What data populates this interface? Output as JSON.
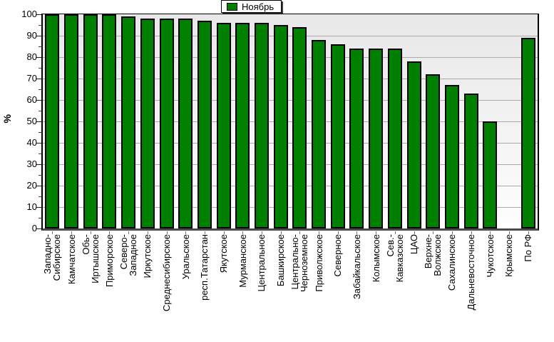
{
  "legend": {
    "label": "Ноябрь",
    "swatch_color": "#008000",
    "position": "top-center"
  },
  "y_axis": {
    "title": "%",
    "tick_labels": [
      "0",
      "10",
      "20",
      "30",
      "40",
      "50",
      "60",
      "70",
      "80",
      "90",
      "100"
    ]
  },
  "colors": {
    "bar_fill": "#008000",
    "bar_border": "#000000",
    "gridline": "#ababab",
    "plot_bg_top": "#e8e8e8",
    "plot_bg_bottom": "#fefefe"
  },
  "chart_data": {
    "type": "bar",
    "title": "",
    "xlabel": "",
    "ylabel": "%",
    "ylim": [
      0,
      100
    ],
    "y_major_step": 10,
    "grid": true,
    "legend_position": "top-center",
    "bar_color": "#008000",
    "categories": [
      "Западно-Сибирское",
      "Камчатское",
      "Обь-Иртышское",
      "Приморское",
      "Северо-Западное",
      "Иркутское",
      "Среднесибирское",
      "Уральское",
      "респ.Татарстан",
      "Якутское",
      "Мурманское",
      "Центральное",
      "Башкирское",
      "Центрально-Черноземное",
      "Приволжское",
      "Северное",
      "Забайкальское",
      "Колымское",
      "Сев.-Кавказское",
      "ЦАО",
      "Верхне-Волжское",
      "Сахалинское",
      "Дальневосточное",
      "Чукотское",
      "Крымское",
      "По РФ"
    ],
    "category_display_lines": [
      [
        "Западно-",
        "Сибирское"
      ],
      [
        "Камчатское"
      ],
      [
        "Обь-",
        "Иртышское"
      ],
      [
        "Приморское"
      ],
      [
        "Северо-",
        "Западное"
      ],
      [
        "Иркутское"
      ],
      [
        "Среднесибирское"
      ],
      [
        "Уральское"
      ],
      [
        "респ.Татарстан"
      ],
      [
        "Якутское"
      ],
      [
        "Мурманское"
      ],
      [
        "Центральное"
      ],
      [
        "Башкирское"
      ],
      [
        "Центрально-",
        "Черноземное"
      ],
      [
        "Приволжское"
      ],
      [
        "Северное"
      ],
      [
        "Забайкальское"
      ],
      [
        "Колымское"
      ],
      [
        "Сев.-",
        "Кавказское"
      ],
      [
        "ЦАО"
      ],
      [
        "Верхне-",
        "Волжское"
      ],
      [
        "Сахалинское"
      ],
      [
        "Дальневосточное"
      ],
      [
        "Чукотское"
      ],
      [
        "Крымское"
      ],
      [
        "По РФ"
      ]
    ],
    "series": [
      {
        "name": "Ноябрь",
        "values": [
          100,
          100,
          100,
          100,
          99,
          98,
          98,
          98,
          97,
          96,
          96,
          96,
          95,
          94,
          88,
          86,
          84,
          84,
          84,
          78,
          72,
          67,
          63,
          50,
          0,
          89
        ]
      }
    ],
    "values": [
      100,
      100,
      100,
      100,
      99,
      98,
      98,
      98,
      97,
      96,
      96,
      96,
      95,
      94,
      88,
      86,
      84,
      84,
      84,
      78,
      72,
      67,
      63,
      50,
      0,
      89
    ],
    "note_zero_bars": [
      "Крымское"
    ]
  }
}
